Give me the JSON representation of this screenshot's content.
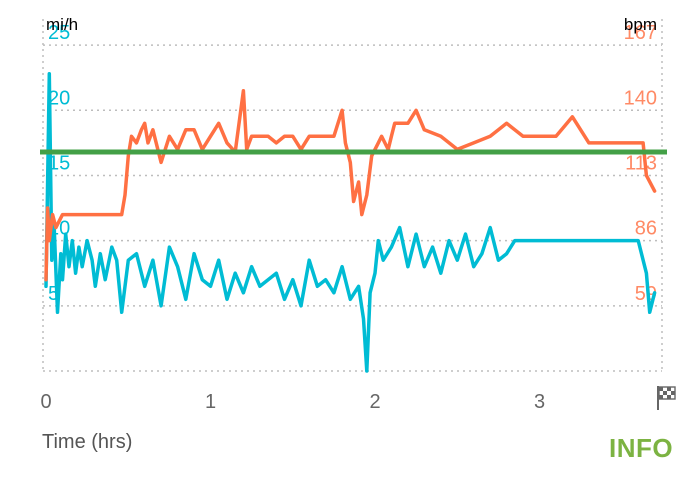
{
  "chart_data": {
    "type": "line",
    "x_unit_label": "Time (hrs)",
    "x_ticks": [
      0,
      1,
      2,
      3
    ],
    "x_range": [
      0,
      3.7
    ],
    "finish_icon": "finish-flag-icon",
    "left_axis": {
      "unit": "mi/h",
      "ticks": [
        5,
        10,
        15,
        20,
        25
      ],
      "range": [
        0,
        27
      ],
      "color": "#00bcd4"
    },
    "right_axis": {
      "unit": "bpm",
      "ticks": [
        59,
        86,
        113,
        140,
        167
      ],
      "color": "#ff8a65"
    },
    "reference_line": {
      "axis": "left",
      "value": 16.8,
      "color": "#43a047"
    },
    "series": [
      {
        "axis": "left",
        "color": "#00bcd4",
        "x": [
          0,
          0.02,
          0.035,
          0.05,
          0.07,
          0.09,
          0.1,
          0.12,
          0.14,
          0.16,
          0.18,
          0.2,
          0.22,
          0.25,
          0.28,
          0.3,
          0.33,
          0.36,
          0.4,
          0.43,
          0.46,
          0.5,
          0.55,
          0.6,
          0.65,
          0.7,
          0.75,
          0.8,
          0.85,
          0.9,
          0.95,
          1.0,
          1.05,
          1.1,
          1.15,
          1.2,
          1.25,
          1.3,
          1.35,
          1.4,
          1.45,
          1.5,
          1.55,
          1.6,
          1.65,
          1.7,
          1.75,
          1.8,
          1.85,
          1.9,
          1.93,
          1.95,
          1.97,
          2.0,
          2.02,
          2.05,
          2.1,
          2.15,
          2.2,
          2.25,
          2.3,
          2.35,
          2.4,
          2.45,
          2.5,
          2.55,
          2.6,
          2.65,
          2.7,
          2.75,
          2.8,
          2.85,
          2.88,
          3.0,
          3.2,
          3.4,
          3.6,
          3.65,
          3.67,
          3.7
        ],
        "values": [
          6.5,
          22.8,
          8.5,
          11.0,
          4.5,
          9.0,
          7.0,
          10.5,
          8.0,
          10.0,
          7.5,
          9.5,
          8.0,
          10.0,
          8.5,
          6.5,
          9.0,
          7.0,
          9.5,
          8.5,
          4.5,
          8.5,
          9.0,
          6.5,
          8.5,
          5.0,
          9.5,
          8.0,
          5.5,
          9.0,
          7.0,
          6.5,
          8.5,
          5.5,
          7.5,
          6.0,
          8.0,
          6.5,
          7.0,
          7.5,
          5.5,
          7.0,
          5.0,
          8.5,
          6.5,
          7.0,
          6.0,
          8.0,
          5.5,
          6.5,
          4.0,
          0.0,
          6.0,
          7.5,
          10.0,
          8.5,
          9.5,
          11.0,
          8.0,
          10.5,
          8.0,
          9.5,
          7.5,
          10.0,
          8.5,
          10.5,
          8.0,
          9.0,
          11.0,
          8.5,
          9.0,
          10.0,
          10.0,
          10.0,
          10.0,
          10.0,
          10.0,
          7.5,
          4.5,
          6.0
        ]
      },
      {
        "axis": "left",
        "color": "#ff7043",
        "x": [
          0,
          0.01,
          0.02,
          0.04,
          0.06,
          0.1,
          0.2,
          0.3,
          0.4,
          0.46,
          0.48,
          0.5,
          0.52,
          0.55,
          0.58,
          0.6,
          0.62,
          0.65,
          0.7,
          0.75,
          0.8,
          0.85,
          0.9,
          0.95,
          1.0,
          1.05,
          1.1,
          1.15,
          1.2,
          1.22,
          1.25,
          1.3,
          1.35,
          1.4,
          1.45,
          1.5,
          1.55,
          1.6,
          1.65,
          1.7,
          1.75,
          1.8,
          1.82,
          1.85,
          1.87,
          1.9,
          1.92,
          1.95,
          1.98,
          2.0,
          2.02,
          2.04,
          2.06,
          2.08,
          2.1,
          2.12,
          2.15,
          2.2,
          2.25,
          2.3,
          2.4,
          2.5,
          2.6,
          2.7,
          2.8,
          2.9,
          3.0,
          3.1,
          3.2,
          3.3,
          3.4,
          3.5,
          3.6,
          3.63,
          3.65,
          3.7
        ],
        "values": [
          7.0,
          12.5,
          10.0,
          12.0,
          11.0,
          12.0,
          12.0,
          12.0,
          12.0,
          12.0,
          13.5,
          16.5,
          18.0,
          17.5,
          18.5,
          19.0,
          17.5,
          18.5,
          16.0,
          18.0,
          17.0,
          18.5,
          18.5,
          17.0,
          18.0,
          19.0,
          17.5,
          16.8,
          21.5,
          17.0,
          18.0,
          18.0,
          18.0,
          17.5,
          18.0,
          18.0,
          17.0,
          18.0,
          18.0,
          18.0,
          18.0,
          20.0,
          17.5,
          16.0,
          13.0,
          14.5,
          12.0,
          13.5,
          16.5,
          17.0,
          17.5,
          18.0,
          17.5,
          17.0,
          18.0,
          19.0,
          19.0,
          19.0,
          20.0,
          18.5,
          18.0,
          17.0,
          17.5,
          18.0,
          19.0,
          18.0,
          18.0,
          18.0,
          19.5,
          17.5,
          17.5,
          17.5,
          17.5,
          17.5,
          15.0,
          13.8
        ]
      }
    ]
  },
  "ui": {
    "info_label": "INFO"
  }
}
